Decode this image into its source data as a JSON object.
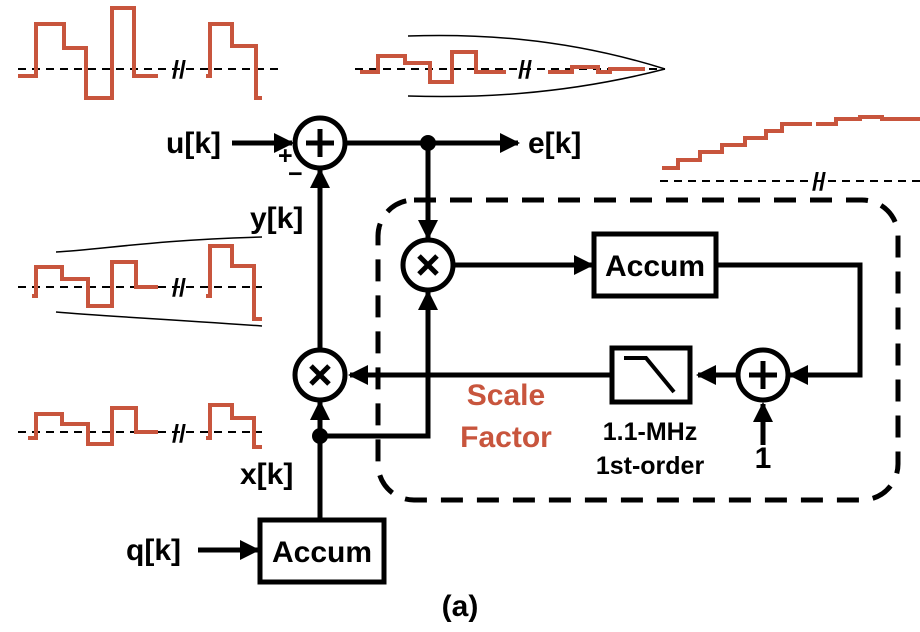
{
  "signals": {
    "u": "u[k]",
    "e": "e[k]",
    "y": "y[k]",
    "x": "x[k]",
    "q": "q[k]"
  },
  "sign_plus": "+",
  "sign_minus": "−",
  "accum_label": "Accum",
  "filter": {
    "line1": "1.1-MHz",
    "line2": "1st-order"
  },
  "scale_factor": {
    "line1": "Scale",
    "line2": "Factor"
  },
  "constant_one": "1",
  "caption": "(a)",
  "break_mark": "//",
  "colors": {
    "waveform": "#c8553d",
    "scale_factor_text": "#c8553d",
    "wire": "#000000"
  },
  "icons": {
    "adder": "plus-circle-icon",
    "multiplier": "times-circle-icon",
    "filter": "lowpass-filter-icon"
  }
}
